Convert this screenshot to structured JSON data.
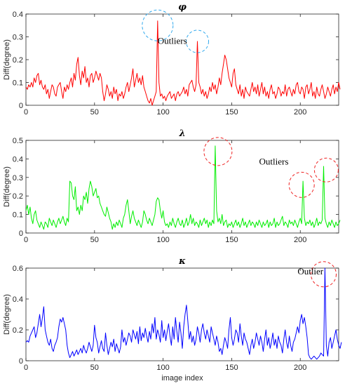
{
  "colors": {
    "phi": "#ff0000",
    "lambda": "#00ee00",
    "kappa": "#0000ff",
    "phi_circle": "#33aaee",
    "outlier_circle": "#ee2222",
    "axis": "#262626"
  },
  "chart_data": [
    {
      "type": "line",
      "title": "φ",
      "ylabel": "Diff(degree)",
      "xlabel": "",
      "xlim": [
        0,
        228
      ],
      "ylim": [
        0,
        0.4
      ],
      "xticks": [
        "0",
        "50",
        "100",
        "150",
        "200"
      ],
      "yticks": [
        "0",
        "0.1",
        "0.2",
        "0.3",
        "0.4"
      ],
      "series": [
        {
          "color": "#ff0000",
          "values": [
            0.08,
            0.07,
            0.09,
            0.08,
            0.1,
            0.08,
            0.12,
            0.1,
            0.13,
            0.14,
            0.09,
            0.11,
            0.08,
            0.07,
            0.09,
            0.05,
            0.07,
            0.03,
            0.06,
            0.09,
            0.08,
            0.05,
            0.04,
            0.08,
            0.09,
            0.1,
            0.06,
            0.03,
            0.08,
            0.06,
            0.09,
            0.07,
            0.1,
            0.12,
            0.08,
            0.14,
            0.11,
            0.18,
            0.21,
            0.13,
            0.09,
            0.15,
            0.12,
            0.17,
            0.1,
            0.12,
            0.08,
            0.13,
            0.14,
            0.1,
            0.12,
            0.15,
            0.13,
            0.11,
            0.14,
            0.12,
            0.06,
            0.02,
            0.05,
            0.09,
            0.07,
            0.04,
            0.06,
            0.03,
            0.08,
            0.05,
            0.07,
            0.02,
            0.05,
            0.04,
            0.06,
            0.03,
            0.05,
            0.08,
            0.1,
            0.06,
            0.09,
            0.12,
            0.16,
            0.08,
            0.11,
            0.14,
            0.1,
            0.12,
            0.09,
            0.13,
            0.08,
            0.06,
            0.04,
            0.02,
            0.01,
            0.03,
            0.0,
            0.02,
            0.04,
            0.06,
            0.37,
            0.1,
            0.04,
            0.05,
            0.03,
            0.04,
            0.02,
            0.04,
            0.05,
            0.06,
            0.03,
            0.04,
            0.05,
            0.02,
            0.05,
            0.06,
            0.04,
            0.05,
            0.06,
            0.08,
            0.05,
            0.07,
            0.04,
            0.09,
            0.1,
            0.11,
            0.08,
            0.06,
            0.09,
            0.28,
            0.1,
            0.08,
            0.05,
            0.07,
            0.04,
            0.06,
            0.03,
            0.05,
            0.08,
            0.06,
            0.1,
            0.07,
            0.09,
            0.05,
            0.08,
            0.12,
            0.09,
            0.14,
            0.18,
            0.22,
            0.2,
            0.16,
            0.12,
            0.1,
            0.08,
            0.14,
            0.16,
            0.09,
            0.07,
            0.05,
            0.09,
            0.04,
            0.07,
            0.03,
            0.08,
            0.06,
            0.05,
            0.04,
            0.07,
            0.1,
            0.06,
            0.08,
            0.05,
            0.09,
            0.04,
            0.07,
            0.1,
            0.05,
            0.08,
            0.04,
            0.06,
            0.03,
            0.07,
            0.09,
            0.05,
            0.06,
            0.03,
            0.05,
            0.08,
            0.07,
            0.04,
            0.06,
            0.05,
            0.09,
            0.04,
            0.07,
            0.08,
            0.06,
            0.04,
            0.07,
            0.05,
            0.09,
            0.1,
            0.06,
            0.05,
            0.08,
            0.07,
            0.03,
            0.08,
            0.09,
            0.05,
            0.07,
            0.1,
            0.04,
            0.06,
            0.03,
            0.08,
            0.05,
            0.04,
            0.07,
            0.09,
            0.06,
            0.03,
            0.05,
            0.08,
            0.06,
            0.04,
            0.07,
            0.09,
            0.05,
            0.08,
            0.06,
            0.1,
            0.07
          ]
        }
      ],
      "annotations": [
        {
          "text": "Outliers",
          "x": 96,
          "y": 0.27
        }
      ],
      "outlier_circles": [
        {
          "x": 96,
          "y": 0.35
        },
        {
          "x": 125,
          "y": 0.28
        }
      ]
    },
    {
      "type": "line",
      "title": "λ",
      "ylabel": "Diff(degree)",
      "xlabel": "",
      "xlim": [
        0,
        228
      ],
      "ylim": [
        0,
        0.5
      ],
      "xticks": [
        "0",
        "50",
        "100",
        "150",
        "200"
      ],
      "yticks": [
        "0",
        "0.1",
        "0.2",
        "0.3",
        "0.4",
        "0.5"
      ],
      "series": [
        {
          "color": "#00ee00",
          "values": [
            0.12,
            0.15,
            0.1,
            0.14,
            0.08,
            0.05,
            0.1,
            0.12,
            0.07,
            0.05,
            0.03,
            0.06,
            0.04,
            0.02,
            0.06,
            0.05,
            0.03,
            0.08,
            0.06,
            0.04,
            0.07,
            0.05,
            0.03,
            0.06,
            0.08,
            0.05,
            0.07,
            0.09,
            0.06,
            0.04,
            0.08,
            0.06,
            0.28,
            0.27,
            0.2,
            0.18,
            0.25,
            0.12,
            0.14,
            0.1,
            0.15,
            0.12,
            0.2,
            0.18,
            0.22,
            0.16,
            0.24,
            0.28,
            0.25,
            0.2,
            0.22,
            0.24,
            0.19,
            0.2,
            0.16,
            0.14,
            0.12,
            0.1,
            0.09,
            0.14,
            0.11,
            0.08,
            0.06,
            0.02,
            0.05,
            0.03,
            0.06,
            0.04,
            0.07,
            0.05,
            0.03,
            0.08,
            0.1,
            0.15,
            0.18,
            0.12,
            0.05,
            0.09,
            0.12,
            0.08,
            0.06,
            0.04,
            0.07,
            0.05,
            0.03,
            0.06,
            0.12,
            0.1,
            0.07,
            0.05,
            0.08,
            0.06,
            0.04,
            0.07,
            0.1,
            0.17,
            0.19,
            0.18,
            0.12,
            0.08,
            0.12,
            0.06,
            0.04,
            0.05,
            0.03,
            0.06,
            0.04,
            0.08,
            0.05,
            0.03,
            0.06,
            0.08,
            0.05,
            0.04,
            0.07,
            0.03,
            0.05,
            0.08,
            0.04,
            0.06,
            0.1,
            0.05,
            0.08,
            0.04,
            0.06,
            0.05,
            0.03,
            0.07,
            0.04,
            0.06,
            0.08,
            0.05,
            0.07,
            0.03,
            0.06,
            0.04,
            0.07,
            0.05,
            0.47,
            0.12,
            0.06,
            0.08,
            0.05,
            0.1,
            0.04,
            0.06,
            0.07,
            0.03,
            0.05,
            0.04,
            0.06,
            0.03,
            0.05,
            0.07,
            0.04,
            0.06,
            0.03,
            0.05,
            0.08,
            0.04,
            0.06,
            0.03,
            0.05,
            0.07,
            0.04,
            0.06,
            0.05,
            0.03,
            0.06,
            0.04,
            0.07,
            0.05,
            0.03,
            0.06,
            0.04,
            0.05,
            0.07,
            0.03,
            0.06,
            0.04,
            0.05,
            0.08,
            0.03,
            0.06,
            0.04,
            0.05,
            0.07,
            0.09,
            0.04,
            0.06,
            0.05,
            0.03,
            0.07,
            0.05,
            0.06,
            0.04,
            0.07,
            0.05,
            0.03,
            0.06,
            0.08,
            0.05,
            0.28,
            0.08,
            0.04,
            0.06,
            0.05,
            0.07,
            0.04,
            0.06,
            0.03,
            0.05,
            0.08,
            0.04,
            0.06,
            0.05,
            0.07,
            0.36,
            0.08,
            0.05,
            0.03,
            0.06,
            0.04,
            0.07,
            0.05,
            0.03,
            0.06,
            0.04,
            0.05,
            0.07
          ]
        }
      ],
      "annotations": [
        {
          "text": "Outliers",
          "x": 170,
          "y": 0.37
        }
      ],
      "outlier_circles": [
        {
          "x": 140,
          "y": 0.44
        },
        {
          "x": 201,
          "y": 0.26
        },
        {
          "x": 219,
          "y": 0.34
        }
      ]
    },
    {
      "type": "line",
      "title": "κ",
      "ylabel": "Diff(degree)",
      "xlabel": "image index",
      "xlim": [
        0,
        228
      ],
      "ylim": [
        0,
        0.6
      ],
      "xticks": [
        "0",
        "50",
        "100",
        "150",
        "200"
      ],
      "yticks": [
        "0",
        "0.2",
        "0.4",
        "0.6"
      ],
      "series": [
        {
          "color": "#0000ff",
          "values": [
            0.12,
            0.13,
            0.12,
            0.16,
            0.18,
            0.2,
            0.22,
            0.15,
            0.18,
            0.24,
            0.3,
            0.22,
            0.28,
            0.35,
            0.2,
            0.16,
            0.12,
            0.1,
            0.14,
            0.08,
            0.06,
            0.1,
            0.12,
            0.15,
            0.22,
            0.27,
            0.25,
            0.28,
            0.24,
            0.2,
            0.1,
            0.05,
            0.02,
            0.04,
            0.06,
            0.03,
            0.05,
            0.07,
            0.04,
            0.06,
            0.08,
            0.05,
            0.1,
            0.07,
            0.05,
            0.08,
            0.12,
            0.09,
            0.06,
            0.1,
            0.23,
            0.15,
            0.12,
            0.05,
            0.09,
            0.13,
            0.08,
            0.06,
            0.18,
            0.1,
            0.04,
            0.08,
            0.12,
            0.09,
            0.14,
            0.06,
            0.11,
            0.08,
            0.05,
            0.09,
            0.2,
            0.12,
            0.15,
            0.1,
            0.14,
            0.18,
            0.16,
            0.12,
            0.2,
            0.17,
            0.14,
            0.19,
            0.11,
            0.22,
            0.13,
            0.18,
            0.15,
            0.21,
            0.16,
            0.12,
            0.19,
            0.14,
            0.24,
            0.18,
            0.28,
            0.14,
            0.2,
            0.17,
            0.12,
            0.26,
            0.15,
            0.2,
            0.13,
            0.19,
            0.24,
            0.16,
            0.1,
            0.22,
            0.14,
            0.28,
            0.19,
            0.12,
            0.25,
            0.18,
            0.08,
            0.22,
            0.3,
            0.36,
            0.26,
            0.14,
            0.19,
            0.12,
            0.16,
            0.1,
            0.14,
            0.22,
            0.18,
            0.12,
            0.2,
            0.24,
            0.18,
            0.14,
            0.2,
            0.16,
            0.12,
            0.22,
            0.18,
            0.14,
            0.1,
            0.16,
            0.12,
            0.06,
            0.08,
            0.04,
            0.1,
            0.15,
            0.12,
            0.08,
            0.2,
            0.28,
            0.15,
            0.1,
            0.14,
            0.2,
            0.18,
            0.12,
            0.24,
            0.16,
            0.1,
            0.18,
            0.14,
            0.12,
            0.08,
            0.04,
            0.1,
            0.14,
            0.08,
            0.12,
            0.18,
            0.14,
            0.1,
            0.16,
            0.12,
            0.06,
            0.14,
            0.2,
            0.1,
            0.15,
            0.08,
            0.12,
            0.18,
            0.1,
            0.14,
            0.08,
            0.16,
            0.12,
            0.1,
            0.05,
            0.14,
            0.2,
            0.12,
            0.08,
            0.16,
            0.1,
            0.06,
            0.12,
            0.14,
            0.18,
            0.22,
            0.18,
            0.26,
            0.3,
            0.24,
            0.28,
            0.22,
            0.15,
            0.04,
            0.02,
            0.01,
            0.02,
            0.03,
            0.02,
            0.01,
            0.02,
            0.03,
            0.05,
            0.04,
            0.03,
            0.6,
            0.1,
            0.03,
            0.12,
            0.15,
            0.08,
            0.12,
            0.16,
            0.2,
            0.14,
            0.1,
            0.08,
            0.12
          ]
        }
      ],
      "annotations": [
        {
          "text": "Outlier",
          "x": 198,
          "y": 0.56
        }
      ],
      "outlier_circles": [
        {
          "x": 217,
          "y": 0.56
        }
      ]
    }
  ]
}
